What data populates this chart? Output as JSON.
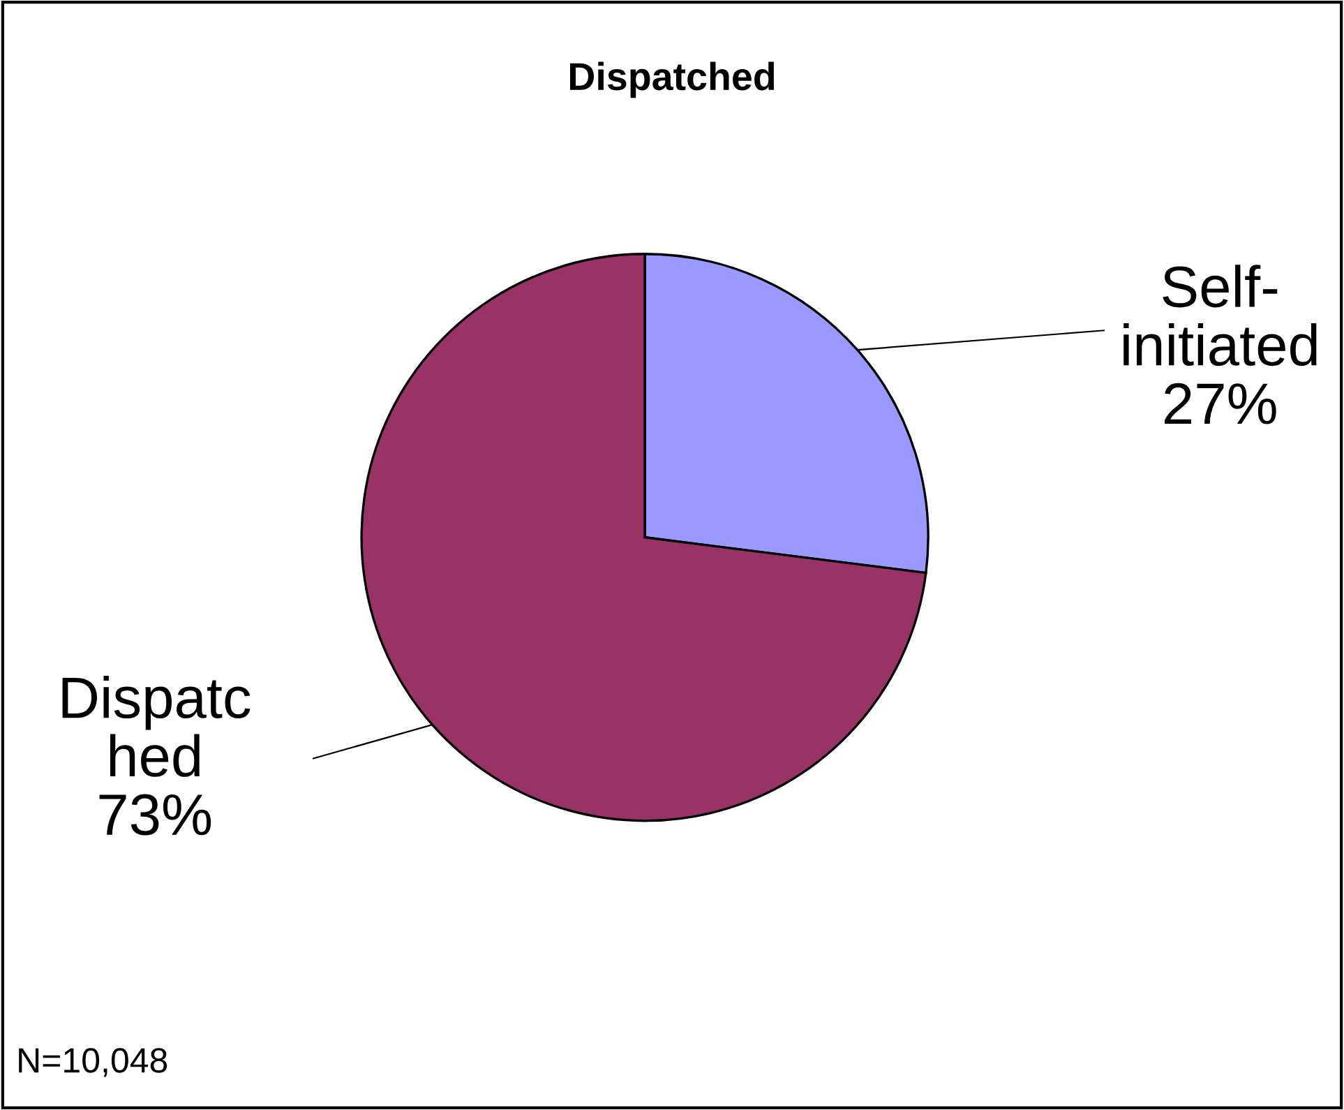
{
  "chart_data": {
    "type": "pie",
    "title": "Dispatched",
    "categories": [
      "Self-\ninitiated",
      "Dispatc\nhed"
    ],
    "values": [
      27,
      73
    ],
    "colors": [
      "#9999ff",
      "#993366"
    ],
    "value_labels": [
      "27%",
      "73%"
    ],
    "legend": false,
    "annotations": [
      "N=10,048"
    ]
  }
}
